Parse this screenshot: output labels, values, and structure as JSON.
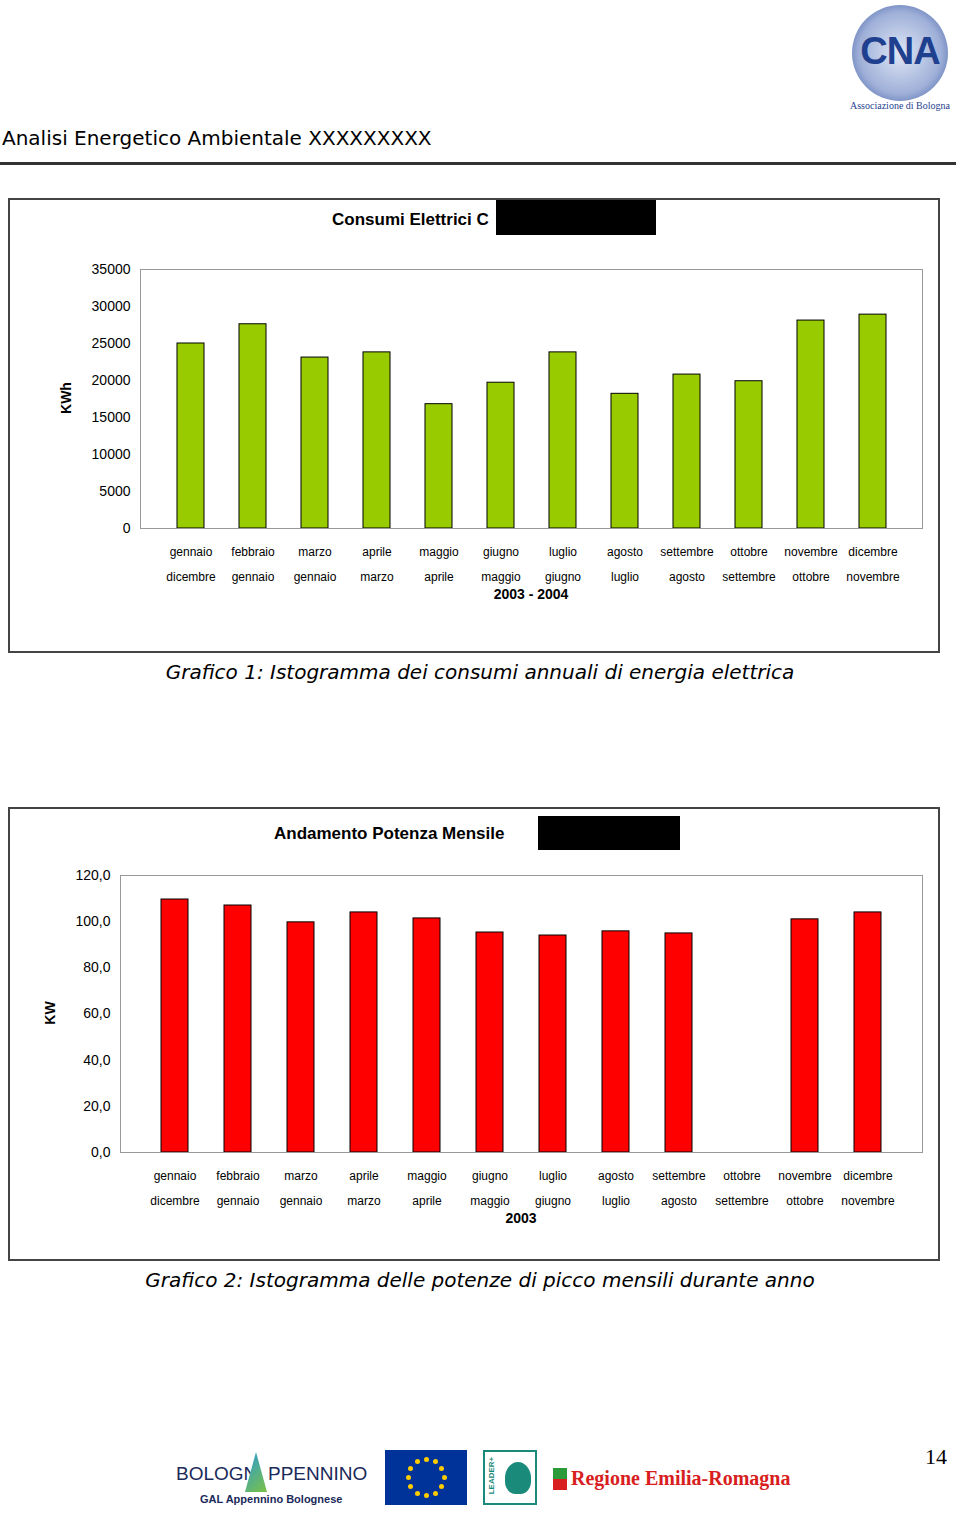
{
  "header": {
    "title": "Analisi Energetico Ambientale XXXXXXXXX",
    "logo": {
      "text": "CNA",
      "subtitle": "Associazione di Bologna"
    }
  },
  "chart_data": [
    {
      "type": "bar",
      "title": "Consumi Elettrici C",
      "xlabel": "2003 - 2004",
      "ylabel": "KWh",
      "categories": [
        "gennaio\ndicembre",
        "febbraio\ngennaio",
        "marzo\ngennaio",
        "aprile\nmarzo",
        "maggio\naprile",
        "giugno\nmaggio",
        "luglio\ngiugno",
        "agosto\nluglio",
        "settembre\nagosto",
        "ottobre\nsettembre",
        "novembre\nottobre",
        "dicembre\nnovembre"
      ],
      "values": [
        25000,
        27600,
        23100,
        23800,
        16800,
        19700,
        23800,
        18200,
        20800,
        19900,
        28100,
        28900
      ],
      "color": "#99cc00",
      "ylim": [
        0,
        35000
      ],
      "yticks": [
        0,
        5000,
        10000,
        15000,
        20000,
        25000,
        30000,
        35000
      ],
      "grid": false
    },
    {
      "type": "bar",
      "title": "Andamento Potenza Mensile",
      "xlabel": "2003",
      "ylabel": "KW",
      "categories": [
        "gennaio\ndicembre",
        "febbraio\ngennaio",
        "marzo\ngennaio",
        "aprile\nmarzo",
        "maggio\naprile",
        "giugno\nmaggio",
        "luglio\ngiugno",
        "agosto\nluglio",
        "settembre\nagosto",
        "ottobre\nsettembre",
        "novembre\nottobre",
        "dicembre\nnovembre"
      ],
      "values": [
        109.6,
        107.0,
        99.7,
        104.0,
        101.4,
        95.3,
        94.0,
        95.8,
        94.9,
        null,
        101.0,
        104.0
      ],
      "color": "#ff0000",
      "ylim": [
        0,
        120
      ],
      "yticks": [
        {
          "value": 0,
          "label": "0,0"
        },
        {
          "value": 20,
          "label": "20,0"
        },
        {
          "value": 40,
          "label": "40,0"
        },
        {
          "value": 60,
          "label": "60,0"
        },
        {
          "value": 80,
          "label": "80,0"
        },
        {
          "value": 100,
          "label": "100,0"
        },
        {
          "value": 120,
          "label": "120,0"
        }
      ],
      "grid": false
    }
  ],
  "captions": [
    "Grafico 1: Istogramma dei consumi annuali di energia elettrica",
    "Grafico 2: Istogramma delle potenze di picco mensili durante anno"
  ],
  "footer": {
    "logos": {
      "bologna_a": "BOLOGN",
      "bologna_b": "APPENNINO",
      "gal": "GAL Appennino Bolognese",
      "leader": "LEADER+",
      "regione": "Regione Emilia-Romagna"
    },
    "page_number": "14"
  }
}
